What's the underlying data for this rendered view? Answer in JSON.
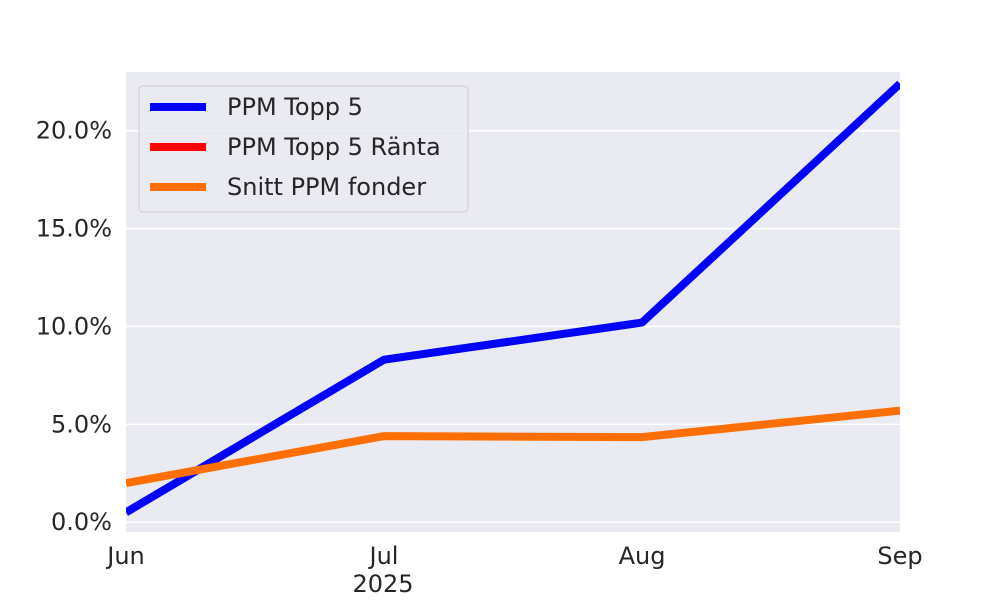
{
  "chart_data": {
    "type": "line",
    "x": [
      "Jun",
      "Jul",
      "Aug",
      "Sep"
    ],
    "x_year_label": "2025",
    "ylim": [
      -0.5,
      23.0
    ],
    "yticks": [
      0.0,
      5.0,
      10.0,
      15.0,
      20.0
    ],
    "ytick_labels": [
      "0.0%",
      "5.0%",
      "10.0%",
      "15.0%",
      "20.0%"
    ],
    "grid": true,
    "legend_position": "top-left",
    "colors": {
      "background": "#EAEAF2",
      "grid": "#FFFFFF"
    },
    "series": [
      {
        "name": "PPM Topp 5",
        "color": "#0000FF",
        "values": [
          0.5,
          8.3,
          10.2,
          22.4
        ]
      },
      {
        "name": "PPM Topp 5 Ränta",
        "color": "#FF0000",
        "values": [
          0.5,
          null,
          null,
          null
        ]
      },
      {
        "name": "Snitt PPM fonder",
        "color": "#FF6F00",
        "values": [
          2.0,
          4.4,
          4.35,
          5.7
        ]
      }
    ]
  }
}
